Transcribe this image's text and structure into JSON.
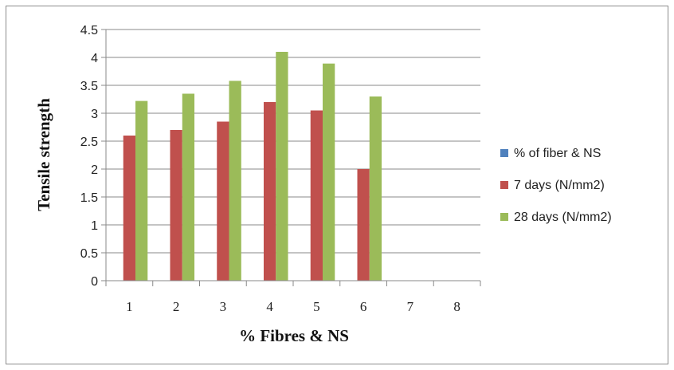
{
  "chart_data": {
    "type": "bar",
    "categories": [
      "1",
      "2",
      "3",
      "4",
      "5",
      "6",
      "7",
      "8"
    ],
    "series": [
      {
        "name": "% of fiber & NS",
        "color": "#4f81bd",
        "values": [
          null,
          null,
          null,
          null,
          null,
          null,
          null,
          null
        ]
      },
      {
        "name": "7 days (N/mm2)",
        "color": "#c0504d",
        "values": [
          2.6,
          2.7,
          2.85,
          3.2,
          3.05,
          2.0,
          null,
          null
        ]
      },
      {
        "name": "28 days (N/mm2)",
        "color": "#9bbb59",
        "values": [
          3.22,
          3.35,
          3.58,
          4.1,
          3.89,
          3.3,
          null,
          null
        ]
      }
    ],
    "xlabel": "% Fibres & NS",
    "ylabel": "Tensile strength",
    "ylim": [
      0,
      4.5
    ],
    "yticks": [
      "0",
      "0.5",
      "1",
      "1.5",
      "2",
      "2.5",
      "3",
      "3.5",
      "4",
      "4.5"
    ],
    "grid": true,
    "legend_position": "right"
  }
}
